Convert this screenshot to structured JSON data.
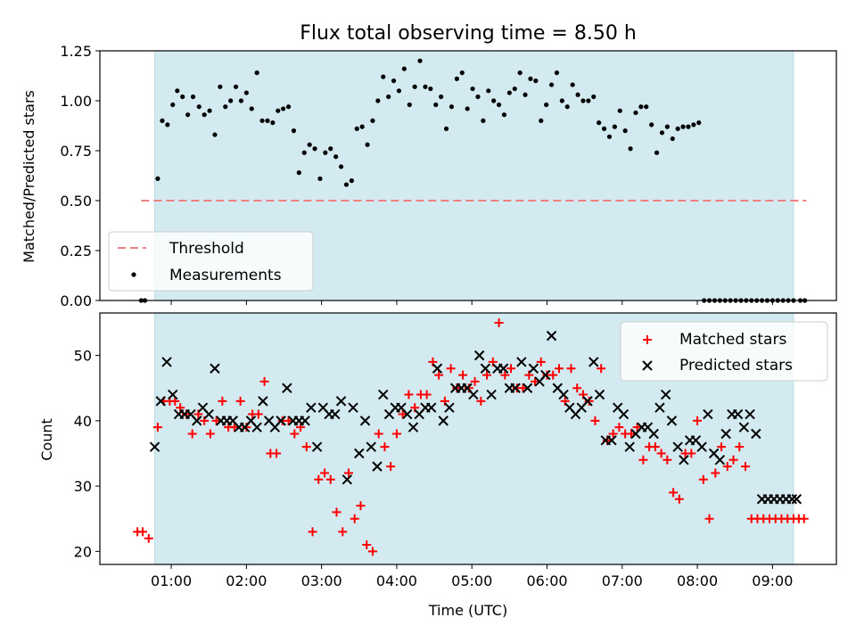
{
  "chart_data": [
    {
      "type": "scatter",
      "title": "Flux total observing time = 8.50 h",
      "xlabel": "",
      "ylabel": "Matched/Predicted stars",
      "xlim": [
        0.05,
        9.85
      ],
      "ylim": [
        0.0,
        1.25
      ],
      "yticks": [
        "0.00",
        "0.25",
        "0.50",
        "0.75",
        "1.00",
        "1.25"
      ],
      "shaded_x": [
        0.78,
        9.28
      ],
      "shade_color": "#d3eaf0",
      "threshold": {
        "name": "Threshold",
        "value": 0.5,
        "x": [
          0.6,
          9.45
        ],
        "color": "#f08080"
      },
      "series": [
        {
          "name": "Measurements",
          "color": "#000000",
          "x": [
            0.6,
            0.65,
            0.82,
            0.88,
            0.95,
            1.02,
            1.08,
            1.15,
            1.22,
            1.29,
            1.37,
            1.44,
            1.51,
            1.58,
            1.65,
            1.72,
            1.79,
            1.86,
            1.93,
            2.0,
            2.07,
            2.14,
            2.21,
            2.28,
            2.35,
            2.42,
            2.49,
            2.56,
            2.63,
            2.7,
            2.77,
            2.84,
            2.91,
            2.98,
            3.05,
            3.12,
            3.19,
            3.26,
            3.33,
            3.4,
            3.47,
            3.54,
            3.61,
            3.68,
            3.75,
            3.82,
            3.89,
            3.96,
            4.03,
            4.1,
            4.17,
            4.24,
            4.31,
            4.38,
            4.45,
            4.52,
            4.59,
            4.66,
            4.73,
            4.8,
            4.87,
            4.94,
            5.01,
            5.08,
            5.15,
            5.22,
            5.29,
            5.36,
            5.43,
            5.5,
            5.57,
            5.64,
            5.71,
            5.78,
            5.85,
            5.92,
            5.99,
            6.06,
            6.13,
            6.2,
            6.27,
            6.34,
            6.41,
            6.48,
            6.55,
            6.62,
            6.69,
            6.76,
            6.83,
            6.9,
            6.97,
            7.04,
            7.11,
            7.18,
            7.25,
            7.32,
            7.39,
            7.46,
            7.53,
            7.6,
            7.67,
            7.74,
            7.81,
            7.88,
            7.95,
            8.02,
            8.09,
            8.16,
            8.23,
            8.3,
            8.37,
            8.44,
            8.51,
            8.58,
            8.65,
            8.72,
            8.79,
            8.86,
            8.93,
            9.0,
            9.07,
            9.14,
            9.21,
            9.28,
            9.37,
            9.43
          ],
          "y": [
            0.0,
            0.0,
            0.61,
            0.9,
            0.88,
            0.98,
            1.05,
            1.02,
            0.93,
            1.02,
            0.97,
            0.93,
            0.95,
            0.83,
            1.07,
            0.97,
            1.0,
            1.07,
            1.0,
            1.04,
            0.96,
            1.14,
            0.9,
            0.9,
            0.89,
            0.95,
            0.96,
            0.97,
            0.85,
            0.64,
            0.74,
            0.78,
            0.76,
            0.61,
            0.74,
            0.76,
            0.72,
            0.67,
            0.58,
            0.6,
            0.86,
            0.87,
            0.78,
            0.9,
            1.0,
            1.12,
            1.02,
            1.1,
            1.05,
            1.16,
            0.98,
            1.07,
            1.2,
            1.07,
            1.06,
            0.98,
            1.02,
            0.86,
            0.97,
            1.11,
            1.14,
            0.96,
            1.06,
            1.02,
            0.9,
            1.05,
            1.0,
            0.98,
            0.93,
            1.04,
            1.06,
            1.14,
            1.03,
            1.11,
            1.1,
            0.9,
            0.98,
            1.08,
            1.14,
            1.0,
            0.97,
            1.08,
            1.03,
            1.0,
            1.0,
            1.02,
            0.89,
            0.86,
            0.82,
            0.87,
            0.95,
            0.85,
            0.76,
            0.94,
            0.97,
            0.97,
            0.88,
            0.74,
            0.84,
            0.87,
            0.81,
            0.86,
            0.87,
            0.87,
            0.88,
            0.89,
            0.0,
            0.0,
            0.0,
            0.0,
            0.0,
            0.0,
            0.0,
            0.0,
            0.0,
            0.0,
            0.0,
            0.0,
            0.0,
            0.0,
            0.0,
            0.0,
            0.0,
            0.0,
            0.0,
            0.0
          ]
        }
      ],
      "legend": {
        "position": "lower-left",
        "entries": [
          "Threshold",
          "Measurements"
        ]
      }
    },
    {
      "type": "scatter",
      "title": "",
      "xlabel": "Time (UTC)",
      "ylabel": "Count",
      "xlim": [
        0.05,
        9.85
      ],
      "ylim": [
        18.0,
        56.5
      ],
      "yticks": [
        "20",
        "30",
        "40",
        "50"
      ],
      "xticks": [
        "01:00",
        "02:00",
        "03:00",
        "04:00",
        "05:00",
        "06:00",
        "07:00",
        "08:00",
        "09:00"
      ],
      "shaded_x": [
        0.78,
        9.28
      ],
      "series": [
        {
          "name": "Matched stars",
          "marker": "plus",
          "color": "#ff0000",
          "x": [
            0.55,
            0.62,
            0.7,
            0.82,
            0.9,
            0.98,
            1.05,
            1.12,
            1.2,
            1.28,
            1.36,
            1.44,
            1.52,
            1.6,
            1.68,
            1.76,
            1.84,
            1.92,
            2.0,
            2.08,
            2.16,
            2.24,
            2.32,
            2.4,
            2.48,
            2.56,
            2.64,
            2.72,
            2.8,
            2.88,
            2.96,
            3.04,
            3.12,
            3.2,
            3.28,
            3.36,
            3.44,
            3.52,
            3.6,
            3.68,
            3.76,
            3.84,
            3.92,
            4.0,
            4.08,
            4.16,
            4.24,
            4.32,
            4.4,
            4.48,
            4.56,
            4.64,
            4.72,
            4.8,
            4.88,
            4.96,
            5.04,
            5.12,
            5.2,
            5.28,
            5.36,
            5.44,
            5.52,
            5.6,
            5.68,
            5.76,
            5.84,
            5.92,
            6.0,
            6.08,
            6.16,
            6.24,
            6.32,
            6.4,
            6.48,
            6.56,
            6.64,
            6.72,
            6.8,
            6.88,
            6.96,
            7.04,
            7.12,
            7.2,
            7.28,
            7.36,
            7.44,
            7.52,
            7.6,
            7.68,
            7.76,
            7.84,
            7.92,
            8.0,
            8.08,
            8.16,
            8.24,
            8.32,
            8.4,
            8.48,
            8.56,
            8.64,
            8.72,
            8.8,
            8.88,
            8.96,
            9.04,
            9.12,
            9.2,
            9.28,
            9.35,
            9.42
          ],
          "y": [
            23,
            23,
            22,
            39,
            43,
            43,
            43,
            42,
            41,
            38,
            41,
            40,
            38,
            40,
            43,
            39,
            39,
            43,
            39,
            41,
            41,
            46,
            35,
            35,
            40,
            40,
            38,
            39,
            36,
            23,
            31,
            32,
            31,
            26,
            23,
            32,
            25,
            27,
            21,
            20,
            38,
            36,
            33,
            38,
            41,
            44,
            42,
            44,
            44,
            49,
            47,
            43,
            48,
            45,
            47,
            45,
            46,
            43,
            47,
            49,
            55,
            47,
            48,
            45,
            45,
            47,
            46,
            49,
            47,
            47,
            48,
            43,
            48,
            45,
            44,
            43,
            40,
            48,
            37,
            38,
            39,
            38,
            38,
            39,
            34,
            36,
            36,
            35,
            34,
            29,
            28,
            35,
            35,
            40,
            31,
            25,
            32,
            36,
            33,
            34,
            36,
            33,
            25,
            25,
            25,
            25,
            25,
            25,
            25,
            25,
            25,
            25
          ],
          "y_note": ""
        },
        {
          "name": "Predicted stars",
          "marker": "x",
          "color": "#000000",
          "x": [
            0.78,
            0.86,
            0.94,
            1.02,
            1.1,
            1.18,
            1.26,
            1.34,
            1.42,
            1.5,
            1.58,
            1.66,
            1.74,
            1.82,
            1.9,
            1.98,
            2.06,
            2.14,
            2.22,
            2.3,
            2.38,
            2.46,
            2.54,
            2.62,
            2.7,
            2.78,
            2.86,
            2.94,
            3.02,
            3.1,
            3.18,
            3.26,
            3.34,
            3.42,
            3.5,
            3.58,
            3.66,
            3.74,
            3.82,
            3.9,
            3.98,
            4.06,
            4.14,
            4.22,
            4.3,
            4.38,
            4.46,
            4.54,
            4.62,
            4.7,
            4.78,
            4.86,
            4.94,
            5.02,
            5.1,
            5.18,
            5.26,
            5.34,
            5.42,
            5.5,
            5.58,
            5.66,
            5.74,
            5.82,
            5.9,
            5.98,
            6.06,
            6.14,
            6.22,
            6.3,
            6.38,
            6.46,
            6.54,
            6.62,
            6.7,
            6.78,
            6.86,
            6.94,
            7.02,
            7.1,
            7.18,
            7.26,
            7.34,
            7.42,
            7.5,
            7.58,
            7.66,
            7.74,
            7.82,
            7.9,
            7.98,
            8.06,
            8.14,
            8.22,
            8.3,
            8.38,
            8.46,
            8.54,
            8.62,
            8.7,
            8.78,
            8.86,
            8.94,
            9.02,
            9.1,
            9.18,
            9.26,
            9.32
          ],
          "y": [
            36,
            43,
            49,
            44,
            41,
            41,
            41,
            40,
            42,
            41,
            48,
            40,
            40,
            40,
            39,
            39,
            40,
            39,
            43,
            40,
            39,
            40,
            45,
            40,
            40,
            40,
            42,
            36,
            42,
            41,
            41,
            43,
            31,
            42,
            35,
            40,
            36,
            33,
            44,
            41,
            42,
            42,
            41,
            39,
            41,
            42,
            42,
            48,
            40,
            42,
            45,
            45,
            45,
            44,
            50,
            48,
            44,
            48,
            48,
            45,
            45,
            49,
            45,
            48,
            46,
            47,
            53,
            45,
            44,
            42,
            41,
            42,
            43,
            49,
            44,
            37,
            37,
            42,
            41,
            36,
            38,
            39,
            39,
            38,
            42,
            44,
            40,
            36,
            34,
            37,
            37,
            36,
            41,
            35,
            34,
            38,
            41,
            41,
            39,
            41,
            38,
            28,
            28,
            28,
            28,
            28,
            28,
            28
          ]
        }
      ],
      "legend": {
        "position": "top-right",
        "entries": [
          "Matched stars",
          "Predicted stars"
        ]
      }
    }
  ]
}
